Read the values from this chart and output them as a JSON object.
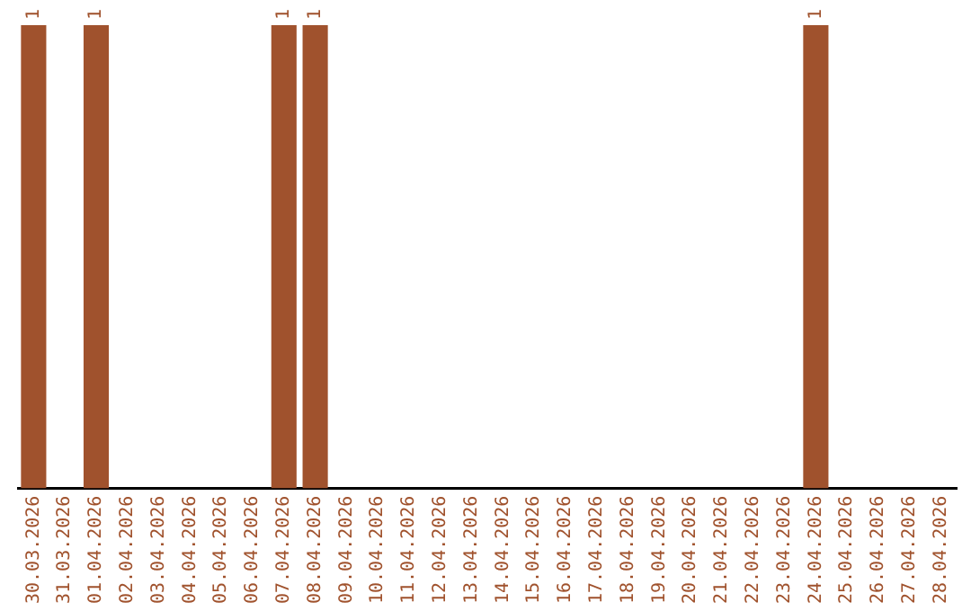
{
  "chart_data": {
    "type": "bar",
    "categories": [
      "30.03.2026",
      "31.03.2026",
      "01.04.2026",
      "02.04.2026",
      "03.04.2026",
      "04.04.2026",
      "05.04.2026",
      "06.04.2026",
      "07.04.2026",
      "08.04.2026",
      "09.04.2026",
      "10.04.2026",
      "11.04.2026",
      "12.04.2026",
      "13.04.2026",
      "14.04.2026",
      "15.04.2026",
      "16.04.2026",
      "17.04.2026",
      "18.04.2026",
      "19.04.2026",
      "20.04.2026",
      "21.04.2026",
      "22.04.2026",
      "23.04.2026",
      "24.04.2026",
      "25.04.2026",
      "26.04.2026",
      "27.04.2026",
      "28.04.2026"
    ],
    "values": [
      1,
      0,
      1,
      0,
      0,
      0,
      0,
      0,
      1,
      1,
      0,
      0,
      0,
      0,
      0,
      0,
      0,
      0,
      0,
      0,
      0,
      0,
      0,
      0,
      0,
      1,
      0,
      0,
      0,
      0
    ],
    "value_labels": [
      "1",
      null,
      "1",
      null,
      null,
      null,
      null,
      null,
      "1",
      "1",
      null,
      null,
      null,
      null,
      null,
      null,
      null,
      null,
      null,
      null,
      null,
      null,
      null,
      null,
      null,
      "1",
      null,
      null,
      null,
      null
    ],
    "color": "#a0522d",
    "ylim": [
      0,
      1
    ],
    "grid": false,
    "legend": false
  }
}
